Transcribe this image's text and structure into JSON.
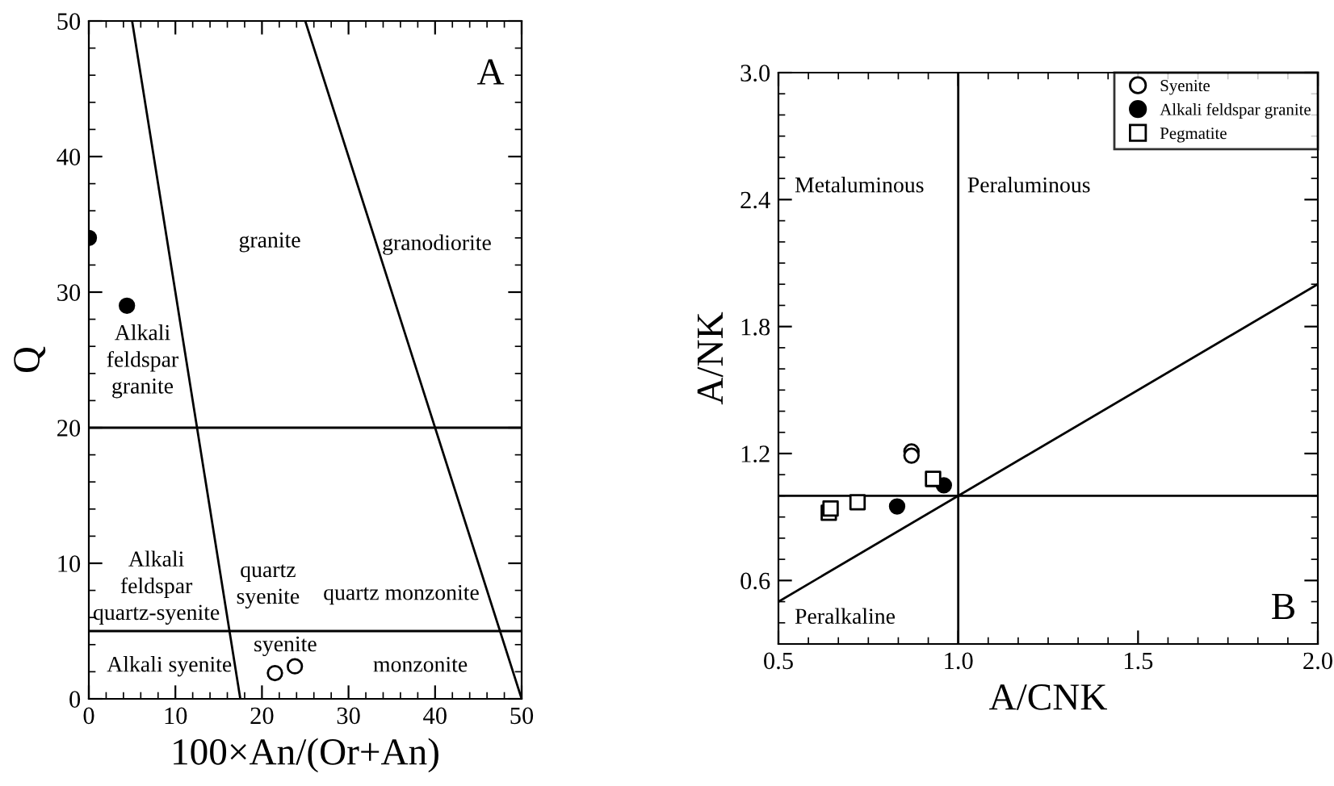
{
  "chart_data": [
    {
      "type": "scatter",
      "xlabel": "100×An/(Or+An)",
      "ylabel": "Q",
      "xlim": [
        0,
        50
      ],
      "ylim": [
        0,
        50
      ],
      "xticks": [
        0,
        10,
        20,
        30,
        40,
        50
      ],
      "yticks": [
        0,
        10,
        20,
        30,
        40,
        50
      ],
      "grid": false,
      "legend": false,
      "series": [
        {
          "type": "line",
          "color": "#000000",
          "x": [
            5,
            17.5
          ],
          "values": [
            50,
            0
          ]
        },
        {
          "type": "line",
          "color": "#000000",
          "x": [
            25,
            50
          ],
          "values": [
            50,
            0
          ]
        },
        {
          "type": "scatter",
          "color": "#ffffff",
          "marker": "circle",
          "x": [
            21.5,
            23.8
          ],
          "values": [
            1.9,
            2.4
          ]
        },
        {
          "type": "scatter",
          "color": "#000000",
          "marker": "circle",
          "x": [
            0,
            4.4
          ],
          "values": [
            34,
            29
          ]
        }
      ],
      "ref_lines": [
        {
          "axis": "y",
          "value": 20,
          "color": "#000000"
        },
        {
          "axis": "y",
          "value": 5,
          "color": "#000000"
        }
      ],
      "annotations": [
        "A",
        "granite",
        "granodiorite",
        "Alkali\nfeldspar\ngranite",
        "Alkali\nfeldspar\nquartz-syenite",
        "quartz\nsyenite",
        "quartz monzonite",
        "syenite",
        "Alkali syenite",
        "monzonite"
      ]
    },
    {
      "type": "scatter",
      "xlabel": "A/CNK",
      "ylabel": "A/NK",
      "xlim": [
        0.5,
        2.0
      ],
      "ylim": [
        0.3,
        3.0
      ],
      "xticks": [
        0.5,
        {
          "value": 1,
          "label": "1.0"
        },
        1.5,
        {
          "value": 2,
          "label": "2.0"
        }
      ],
      "yticks": [
        0.6,
        1.2,
        1.8,
        2.4,
        {
          "value": 3,
          "label": "3.0"
        }
      ],
      "grid": false,
      "legend": "top right",
      "series": [
        {
          "type": "line",
          "color": "#000000",
          "x": [
            0.5,
            2.0
          ],
          "values": [
            0.5,
            2.0
          ]
        },
        {
          "name": "Syenite",
          "type": "scatter",
          "marker": "circle",
          "color": "#ffffff",
          "x": [
            0.87,
            0.87
          ],
          "values": [
            1.21,
            1.19
          ]
        },
        {
          "name": "Alkali feldspar granite",
          "type": "scatter",
          "marker": "circle",
          "color": "#000000",
          "x": [
            0.83,
            0.96
          ],
          "values": [
            0.95,
            1.05
          ]
        },
        {
          "name": "Pegmatite",
          "type": "scatter",
          "marker": "square",
          "color": "#ffffff",
          "x": [
            0.64,
            0.645,
            0.72,
            0.93
          ],
          "values": [
            0.92,
            0.94,
            0.97,
            1.08
          ]
        }
      ],
      "ref_lines": [
        {
          "axis": "x",
          "value": 1,
          "color": "#000000"
        },
        {
          "axis": "y",
          "value": 1,
          "color": "#000000"
        }
      ],
      "annotations": [
        "B",
        "Metaluminous",
        "Peraluminous",
        "Peralkaline"
      ]
    }
  ]
}
